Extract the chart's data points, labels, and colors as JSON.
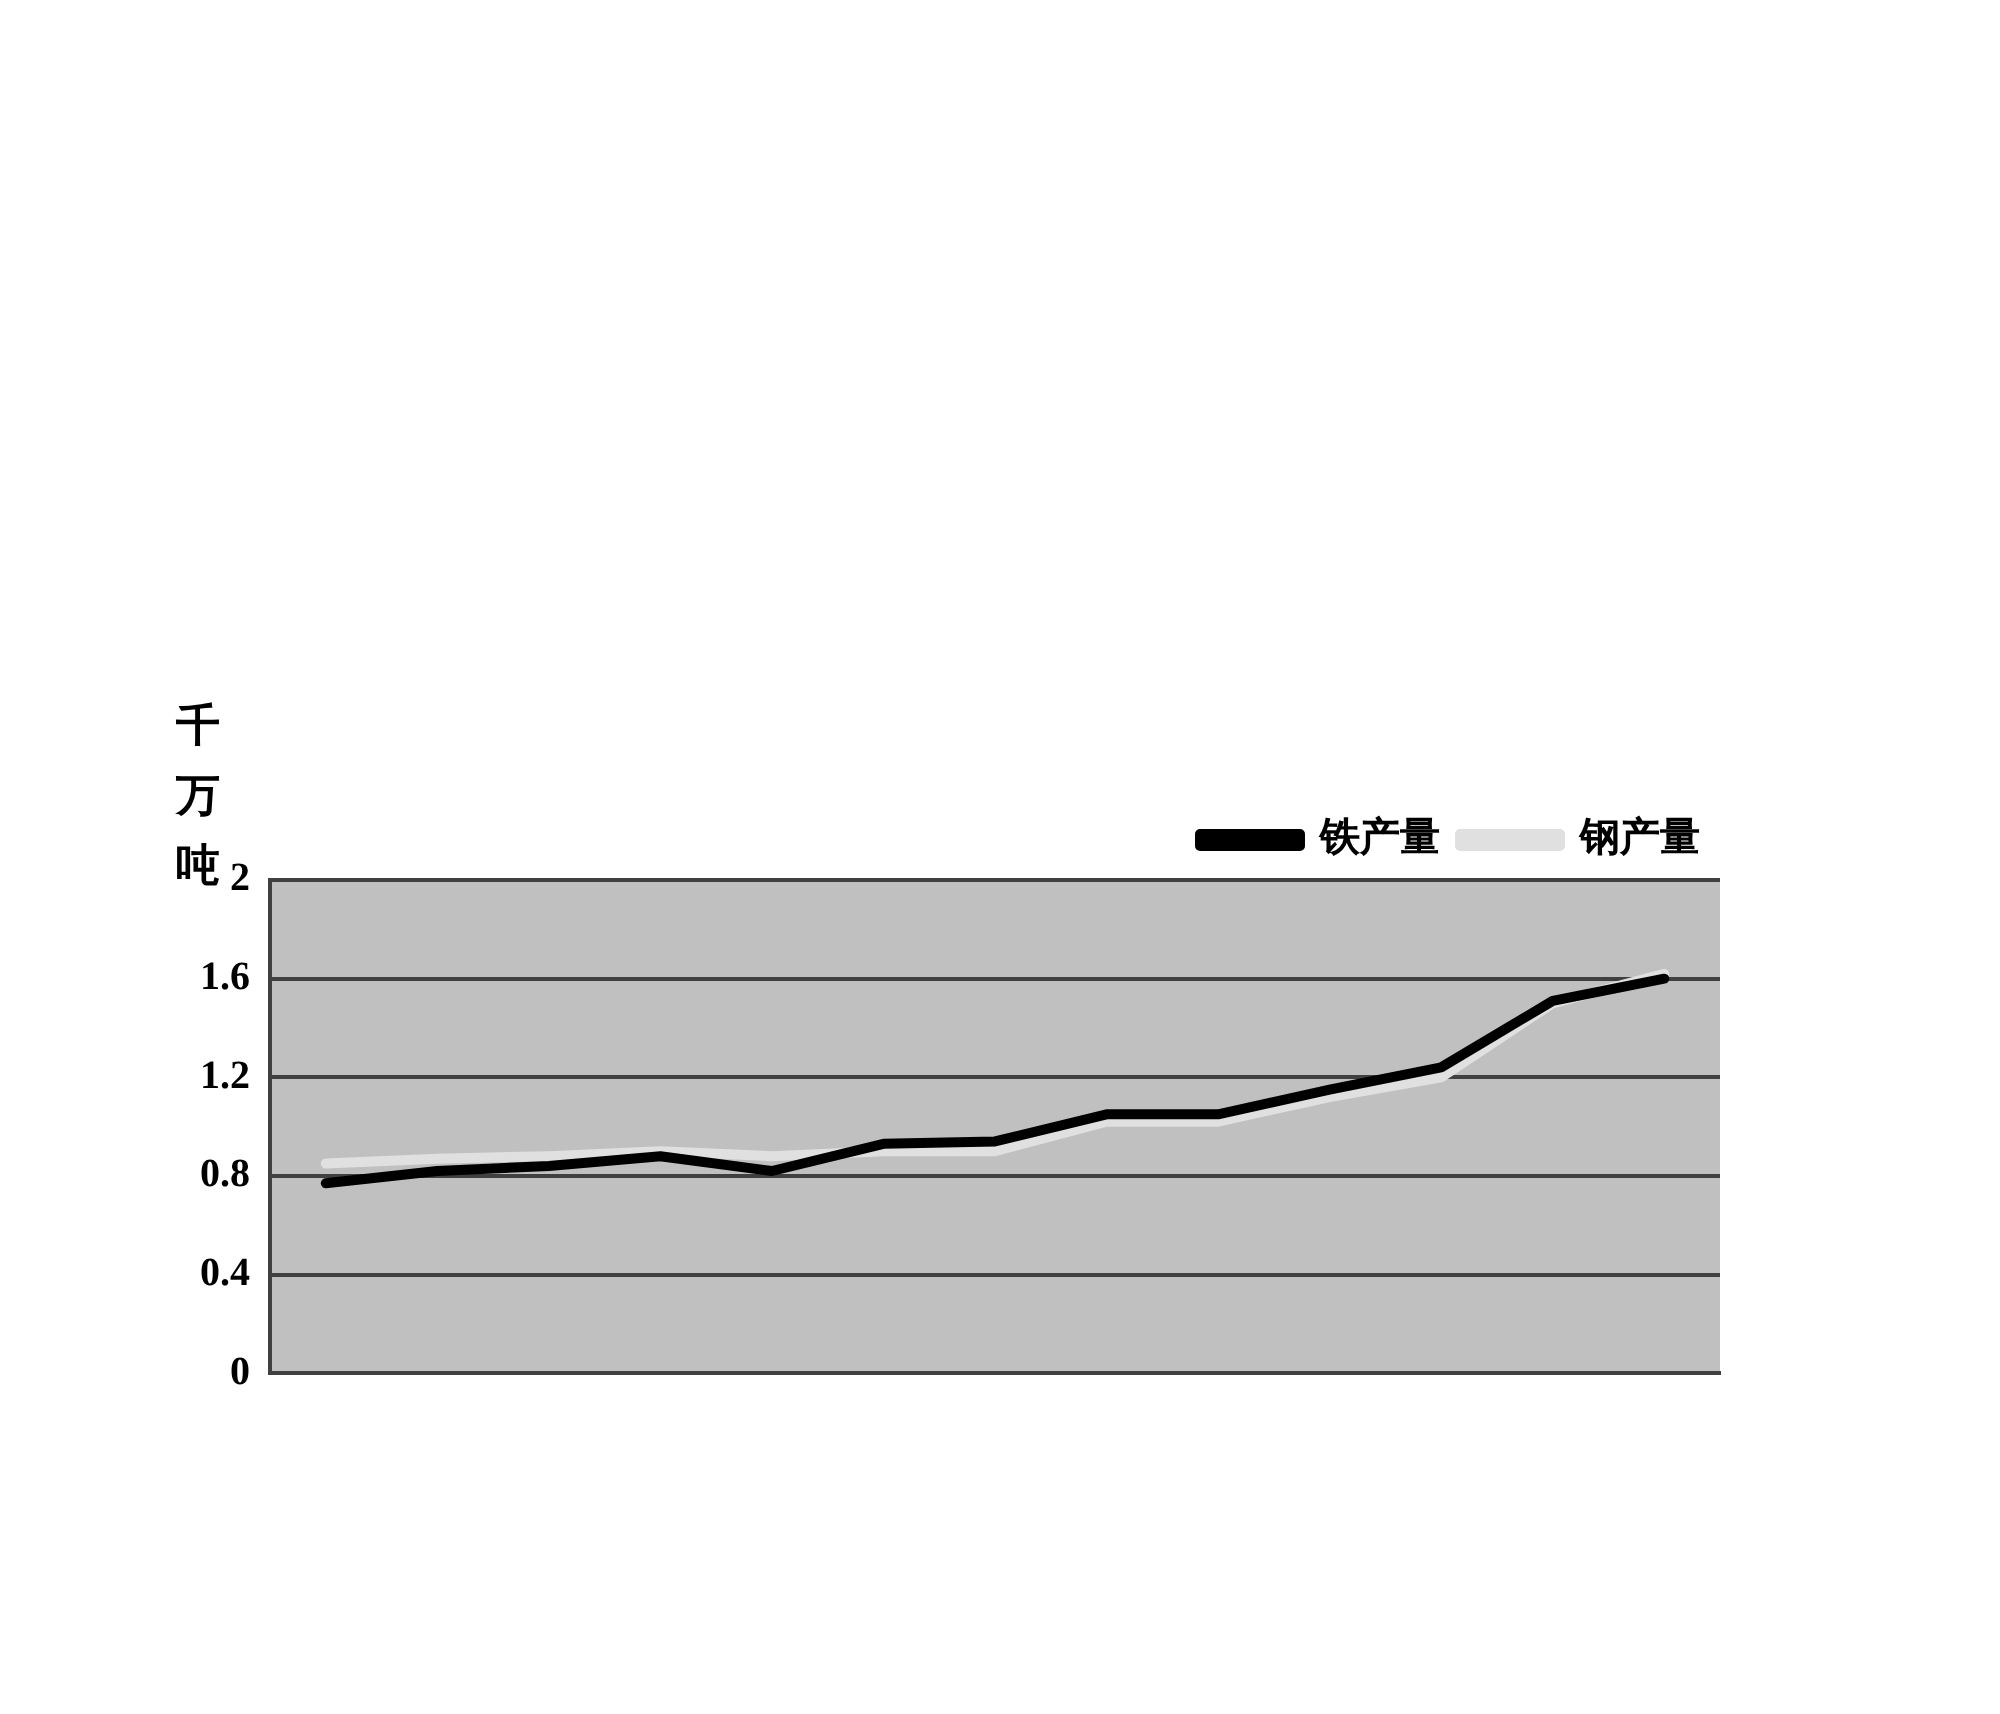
{
  "chart_data": {
    "type": "line",
    "ylabel": "千万吨",
    "categories": [
      null,
      null,
      null,
      null,
      null,
      null,
      null,
      null,
      null,
      null,
      null,
      null,
      null
    ],
    "series": [
      {
        "name": "铁产量",
        "color": "#000000",
        "values": [
          0.77,
          0.82,
          0.84,
          0.88,
          0.82,
          0.93,
          0.94,
          1.05,
          1.05,
          1.15,
          1.24,
          1.51,
          1.6
        ]
      },
      {
        "name": "钢产量",
        "color": "#e0e0e0",
        "values": [
          0.85,
          0.87,
          0.88,
          0.9,
          0.88,
          0.9,
          0.9,
          1.02,
          1.02,
          1.12,
          1.2,
          1.5,
          1.62
        ]
      }
    ],
    "ylim": [
      0,
      2
    ],
    "yticks": [
      0,
      0.4,
      0.8,
      1.2,
      1.6,
      2
    ],
    "grid": "y",
    "legend": "top right",
    "marker": "none",
    "line_style": "solid"
  }
}
